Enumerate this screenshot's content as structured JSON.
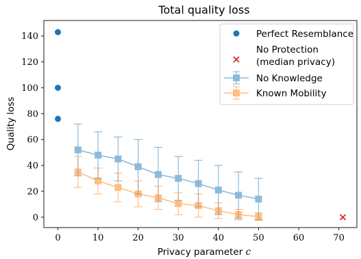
{
  "chart_data": {
    "type": "line",
    "title": "Total quality loss",
    "xlabel": "Privacy parameter ",
    "xlabel_var": "c",
    "ylabel": "Quality loss",
    "xlim": [
      -3.5,
      74.5
    ],
    "ylim": [
      -8,
      152
    ],
    "x_ticks": [
      0,
      10,
      20,
      30,
      40,
      50,
      60,
      70
    ],
    "y_ticks": [
      0,
      20,
      40,
      60,
      80,
      100,
      120,
      140
    ],
    "x_tick_labels": [
      "0",
      "10",
      "20",
      "30",
      "40",
      "50",
      "60",
      "70"
    ],
    "y_tick_labels": [
      "0",
      "20",
      "40",
      "60",
      "80",
      "100",
      "120",
      "140"
    ],
    "grid": false,
    "legend_position": "top-right",
    "colors": {
      "perfect": "#1f77b4",
      "no_protection": "#d62728",
      "no_knowledge": "#1f77b4",
      "known_mobility": "#ff7f0e"
    },
    "series": [
      {
        "name": "Perfect Resemblance",
        "kind": "scatter",
        "marker": "circle",
        "points": [
          {
            "x": 0,
            "y": 143
          },
          {
            "x": 0,
            "y": 100
          },
          {
            "x": 0,
            "y": 76
          }
        ]
      },
      {
        "name": "No Protection",
        "name_line2": "(median privacy)",
        "kind": "scatter",
        "marker": "x",
        "points": [
          {
            "x": 71,
            "y": 0
          }
        ]
      },
      {
        "name": "No Knowledge",
        "kind": "line",
        "marker": "square",
        "x": [
          5,
          10,
          15,
          20,
          25,
          30,
          35,
          40,
          45,
          50
        ],
        "y": [
          52,
          48,
          45,
          39,
          33,
          30,
          26,
          21,
          17,
          14
        ],
        "err": [
          20,
          18,
          17,
          21,
          21,
          17,
          18,
          19,
          18,
          16
        ]
      },
      {
        "name": "Known Mobility",
        "kind": "line",
        "marker": "square",
        "x": [
          5,
          10,
          15,
          20,
          25,
          30,
          35,
          40,
          45,
          50
        ],
        "y": [
          35,
          28,
          23,
          18,
          15,
          10.5,
          9,
          5,
          2,
          0.5
        ],
        "err": [
          12,
          10,
          11,
          10,
          9,
          8.5,
          9,
          6,
          4,
          3
        ]
      }
    ]
  }
}
